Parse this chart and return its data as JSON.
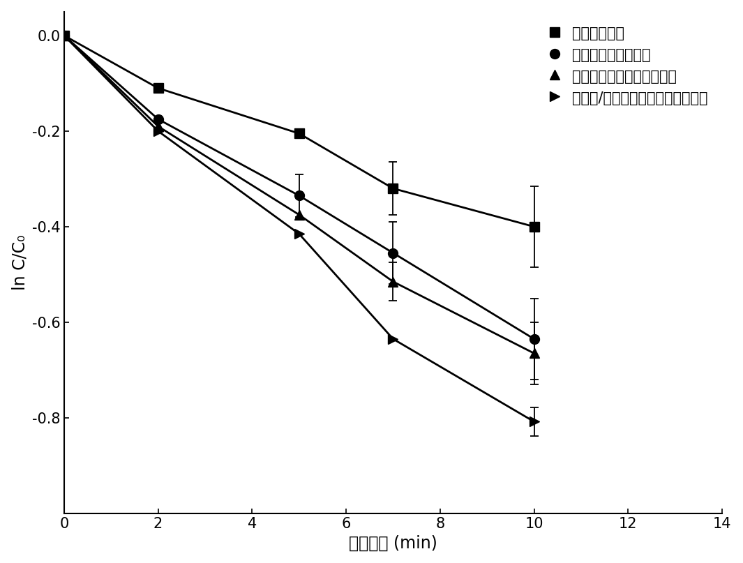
{
  "xlabel": "反应时间 (min)",
  "ylabel": "ln C/C₀",
  "xlim": [
    0,
    14
  ],
  "ylim": [
    -1.0,
    0.05
  ],
  "xticks": [
    0,
    2,
    4,
    6,
    8,
    10,
    12,
    14
  ],
  "yticks": [
    0.0,
    -0.2,
    -0.4,
    -0.6,
    -0.8
  ],
  "series": [
    {
      "label": "单独臭氧氧化",
      "marker": "s",
      "x": [
        0,
        2,
        5,
        7,
        10
      ],
      "y": [
        0.0,
        -0.11,
        -0.205,
        -0.32,
        -0.4
      ],
      "yerr": [
        0.0,
        0.0,
        0.0,
        0.055,
        0.085
      ]
    },
    {
      "label": "钔酸钒幕化臭氧氧化",
      "marker": "o",
      "x": [
        0,
        2,
        5,
        7,
        10
      ],
      "y": [
        0.0,
        -0.175,
        -0.335,
        -0.455,
        -0.635
      ],
      "yerr": [
        0.0,
        0.0,
        0.045,
        0.065,
        0.085
      ]
    },
    {
      "label": "石墨相氮化碳幕化臭氧氧化",
      "marker": "^",
      "x": [
        0,
        2,
        5,
        7,
        10
      ],
      "y": [
        0.0,
        -0.19,
        -0.375,
        -0.515,
        -0.665
      ],
      "yerr": [
        0.0,
        0.0,
        0.0,
        0.04,
        0.065
      ]
    },
    {
      "label": "钔酸钒/石墨相氮化碳幕化臭氧氧化",
      "marker": ">",
      "x": [
        0,
        2,
        5,
        7,
        10
      ],
      "y": [
        0.0,
        -0.2,
        -0.415,
        -0.635,
        -0.808
      ],
      "yerr": [
        0.0,
        0.0,
        0.0,
        0.0,
        0.03
      ]
    }
  ],
  "line_color": "#000000",
  "marker_color": "#000000",
  "marker_size": 10,
  "linewidth": 2.0,
  "background_color": "#ffffff",
  "legend_fontsize": 15,
  "axis_fontsize": 17,
  "tick_fontsize": 15
}
